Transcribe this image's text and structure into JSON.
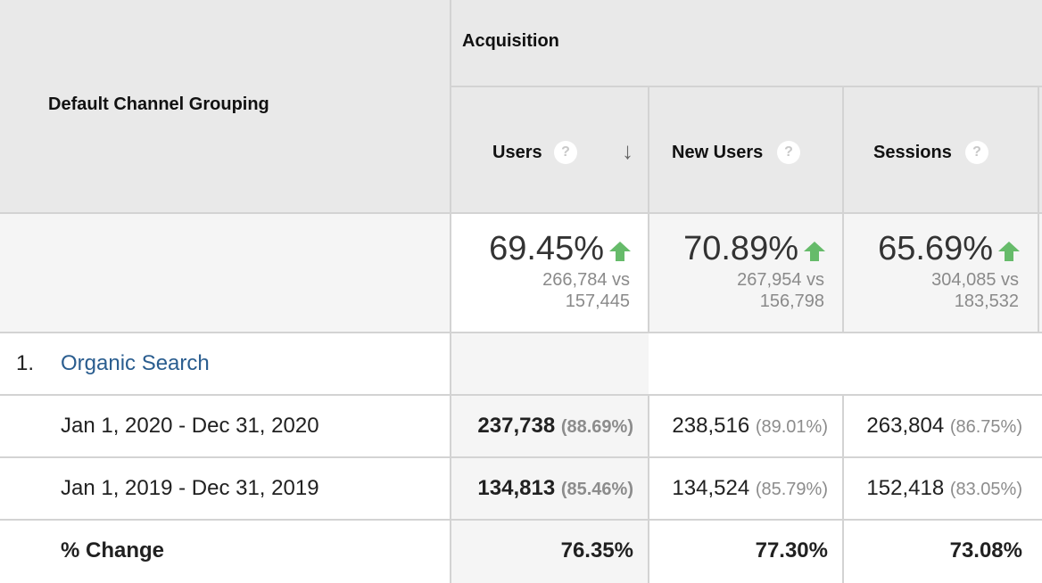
{
  "header": {
    "dimension_label": "Default Channel Grouping",
    "group_label": "Acquisition",
    "columns": [
      {
        "label": "Users",
        "sorted": true
      },
      {
        "label": "New Users"
      },
      {
        "label": "Sessions"
      }
    ],
    "help_glyph": "?",
    "sort_glyph": "↓"
  },
  "totals": [
    {
      "percent": "69.45%",
      "current": "266,784 vs",
      "previous": "157,445"
    },
    {
      "percent": "70.89%",
      "current": "267,954 vs",
      "previous": "156,798"
    },
    {
      "percent": "65.69%",
      "current": "304,085 vs",
      "previous": "183,532"
    }
  ],
  "row": {
    "index": "1.",
    "channel": "Organic Search",
    "periods": [
      {
        "label": "Jan 1, 2020 - Dec 31, 2020",
        "cells": [
          {
            "value": "237,738",
            "share": "(88.69%)"
          },
          {
            "value": "238,516",
            "share": "(89.01%)"
          },
          {
            "value": "263,804",
            "share": "(86.75%)"
          }
        ]
      },
      {
        "label": "Jan 1, 2019 - Dec 31, 2019",
        "cells": [
          {
            "value": "134,813",
            "share": "(85.46%)"
          },
          {
            "value": "134,524",
            "share": "(85.79%)"
          },
          {
            "value": "152,418",
            "share": "(83.05%)"
          }
        ]
      }
    ],
    "change_label": "% Change",
    "changes": [
      "76.35%",
      "77.30%",
      "73.08%"
    ]
  },
  "colors": {
    "up_arrow": "#66bb6a",
    "link": "#2a5d8f",
    "header_bg": "#e9e9e9"
  }
}
